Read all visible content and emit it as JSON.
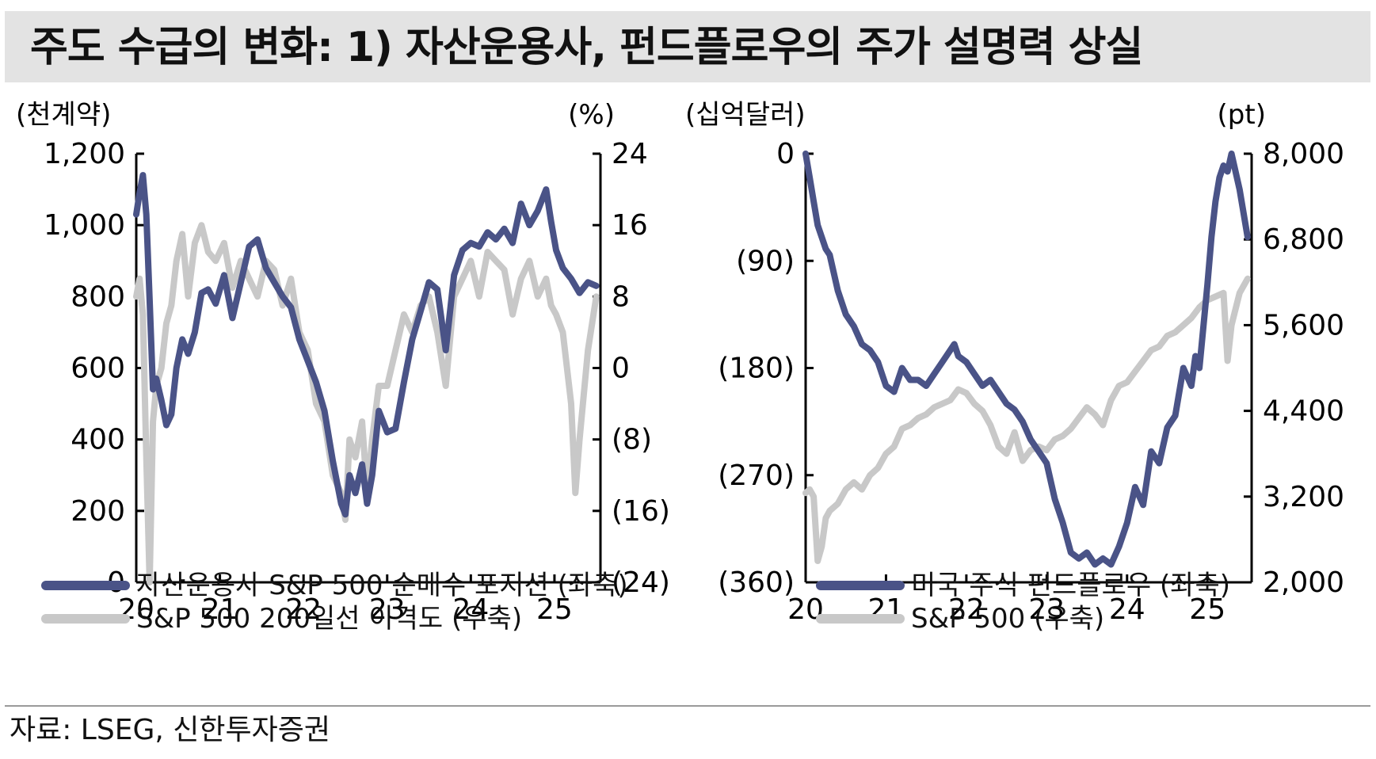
{
  "title": "주도 수급의 변화: 1) 자산운용사, 펀드플로우의 주가 설명력 상실",
  "source": "자료: LSEG, 신한투자증권",
  "colors": {
    "series_dark": "#4a5387",
    "series_light": "#c8c8c8",
    "axis": "#000000",
    "title_bg": "#e3e3e3"
  },
  "chart_data": [
    {
      "type": "line",
      "left_unit_label": "(천계약)",
      "right_unit_label": "(%)",
      "x_ticks": [
        "20",
        "21",
        "22",
        "23",
        "24",
        "25"
      ],
      "x_range": [
        2020.0,
        2025.55
      ],
      "left_axis": {
        "range": [
          0,
          1200
        ],
        "ticks": [
          0,
          200,
          400,
          600,
          800,
          1000,
          1200
        ],
        "tick_labels": [
          "0",
          "200",
          "400",
          "600",
          "800",
          "1,000",
          "1,200"
        ]
      },
      "right_axis": {
        "range": [
          -24,
          24
        ],
        "ticks": [
          -24,
          -16,
          -8,
          0,
          8,
          16,
          24
        ],
        "tick_labels": [
          "(24)",
          "(16)",
          "(8)",
          "0",
          "8",
          "16",
          "24"
        ]
      },
      "series": [
        {
          "name": "자산운용사 S&P 500 순매수 포지션 (좌축)",
          "axis": "left",
          "color": "#4a5387",
          "x": [
            2020.0,
            2020.04,
            2020.08,
            2020.12,
            2020.16,
            2020.2,
            2020.24,
            2020.3,
            2020.36,
            2020.42,
            2020.48,
            2020.55,
            2020.62,
            2020.7,
            2020.78,
            2020.86,
            2020.95,
            2021.05,
            2021.15,
            2021.25,
            2021.35,
            2021.45,
            2021.55,
            2021.65,
            2021.75,
            2021.85,
            2021.95,
            2022.05,
            2022.15,
            2022.25,
            2022.35,
            2022.45,
            2022.5,
            2022.55,
            2022.62,
            2022.7,
            2022.76,
            2022.82,
            2022.9,
            2023.0,
            2023.1,
            2023.2,
            2023.3,
            2023.4,
            2023.5,
            2023.6,
            2023.7,
            2023.8,
            2023.9,
            2024.0,
            2024.1,
            2024.2,
            2024.3,
            2024.4,
            2024.5,
            2024.6,
            2024.7,
            2024.8,
            2024.9,
            2024.96,
            2025.02,
            2025.1,
            2025.2,
            2025.3,
            2025.4,
            2025.5
          ],
          "y": [
            1030,
            1090,
            1140,
            1030,
            790,
            540,
            570,
            510,
            440,
            470,
            600,
            680,
            640,
            700,
            810,
            820,
            780,
            860,
            740,
            840,
            940,
            960,
            880,
            840,
            800,
            770,
            680,
            620,
            560,
            480,
            340,
            220,
            190,
            300,
            250,
            330,
            220,
            300,
            480,
            420,
            430,
            560,
            680,
            760,
            840,
            820,
            650,
            860,
            930,
            950,
            940,
            980,
            960,
            990,
            950,
            1060,
            1000,
            1040,
            1100,
            1010,
            930,
            880,
            850,
            810,
            840,
            830
          ]
        },
        {
          "name": "S&P 500 200일선 이격도 (우축)",
          "axis": "right",
          "color": "#c8c8c8",
          "x": [
            2020.0,
            2020.04,
            2020.08,
            2020.12,
            2020.16,
            2020.2,
            2020.24,
            2020.3,
            2020.36,
            2020.42,
            2020.48,
            2020.55,
            2020.62,
            2020.7,
            2020.78,
            2020.86,
            2020.95,
            2021.05,
            2021.15,
            2021.25,
            2021.35,
            2021.45,
            2021.55,
            2021.65,
            2021.75,
            2021.85,
            2021.95,
            2022.05,
            2022.15,
            2022.25,
            2022.35,
            2022.45,
            2022.5,
            2022.55,
            2022.62,
            2022.7,
            2022.76,
            2022.82,
            2022.9,
            2023.0,
            2023.1,
            2023.2,
            2023.3,
            2023.4,
            2023.5,
            2023.6,
            2023.7,
            2023.8,
            2023.9,
            2024.0,
            2024.1,
            2024.2,
            2024.3,
            2024.4,
            2024.5,
            2024.6,
            2024.7,
            2024.8,
            2024.9,
            2024.96,
            2025.02,
            2025.1,
            2025.2,
            2025.25,
            2025.3,
            2025.4,
            2025.5
          ],
          "y": [
            8,
            10,
            6,
            -10,
            -24,
            -6,
            -2,
            0,
            5,
            7,
            12,
            15,
            8,
            14,
            16,
            13,
            12,
            14,
            9,
            12,
            10,
            8,
            12,
            11,
            7,
            10,
            4,
            2,
            -4,
            -6,
            -12,
            -14,
            -17,
            -8,
            -10,
            -6,
            -14,
            -8,
            -2,
            -2,
            2,
            6,
            4,
            7,
            8,
            4,
            -2,
            8,
            10,
            12,
            8,
            13,
            12,
            11,
            6,
            10,
            12,
            8,
            10,
            7,
            6,
            4,
            -4,
            -14,
            -8,
            2,
            8
          ]
        }
      ]
    },
    {
      "type": "line",
      "left_unit_label": "(십억달러)",
      "right_unit_label": "(pt)",
      "x_ticks": [
        "20",
        "21",
        "22",
        "23",
        "24",
        "25"
      ],
      "x_range": [
        2020.0,
        2025.55
      ],
      "left_axis": {
        "range": [
          -360,
          0
        ],
        "ticks": [
          -360,
          -270,
          -180,
          -90,
          0
        ],
        "tick_labels": [
          "(360)",
          "(270)",
          "(180)",
          "(90)",
          "0"
        ]
      },
      "right_axis": {
        "range": [
          2000,
          8000
        ],
        "ticks": [
          2000,
          3200,
          4400,
          5600,
          6800,
          8000
        ],
        "tick_labels": [
          "2,000",
          "3,200",
          "4,400",
          "5,600",
          "6,800",
          "8,000"
        ]
      },
      "series": [
        {
          "name": "미국 주식 펀드플로우 (좌축)",
          "axis": "left",
          "color": "#4a5387",
          "x": [
            2020.0,
            2020.05,
            2020.1,
            2020.15,
            2020.2,
            2020.25,
            2020.3,
            2020.35,
            2020.4,
            2020.5,
            2020.6,
            2020.7,
            2020.8,
            2020.9,
            2021.0,
            2021.1,
            2021.2,
            2021.3,
            2021.4,
            2021.5,
            2021.6,
            2021.7,
            2021.8,
            2021.85,
            2021.9,
            2022.0,
            2022.1,
            2022.2,
            2022.3,
            2022.4,
            2022.5,
            2022.6,
            2022.7,
            2022.8,
            2022.9,
            2023.0,
            2023.1,
            2023.2,
            2023.3,
            2023.4,
            2023.5,
            2023.6,
            2023.7,
            2023.8,
            2023.9,
            2024.0,
            2024.1,
            2024.2,
            2024.3,
            2024.4,
            2024.5,
            2024.6,
            2024.7,
            2024.8,
            2024.85,
            2024.9,
            2025.0,
            2025.05,
            2025.1,
            2025.15,
            2025.2,
            2025.25,
            2025.3,
            2025.4,
            2025.5
          ],
          "y": [
            0,
            -20,
            -40,
            -60,
            -70,
            -80,
            -85,
            -100,
            -115,
            -135,
            -145,
            -160,
            -165,
            -175,
            -195,
            -200,
            -180,
            -190,
            -190,
            -195,
            -185,
            -175,
            -165,
            -160,
            -170,
            -175,
            -185,
            -195,
            -190,
            -200,
            -210,
            -215,
            -225,
            -240,
            -250,
            -260,
            -290,
            -310,
            -335,
            -340,
            -335,
            -345,
            -340,
            -345,
            -330,
            -310,
            -280,
            -295,
            -250,
            -260,
            -230,
            -220,
            -180,
            -195,
            -170,
            -180,
            -110,
            -70,
            -40,
            -20,
            -10,
            -15,
            0,
            -30,
            -70
          ]
        },
        {
          "name": "S&P 500 (우축)",
          "axis": "right",
          "color": "#c8c8c8",
          "x": [
            2020.0,
            2020.05,
            2020.1,
            2020.15,
            2020.2,
            2020.25,
            2020.3,
            2020.4,
            2020.5,
            2020.6,
            2020.7,
            2020.8,
            2020.9,
            2021.0,
            2021.1,
            2021.2,
            2021.3,
            2021.4,
            2021.5,
            2021.6,
            2021.7,
            2021.8,
            2021.9,
            2022.0,
            2022.1,
            2022.2,
            2022.3,
            2022.4,
            2022.5,
            2022.6,
            2022.7,
            2022.8,
            2022.9,
            2023.0,
            2023.1,
            2023.2,
            2023.3,
            2023.4,
            2023.5,
            2023.6,
            2023.7,
            2023.8,
            2023.9,
            2024.0,
            2024.1,
            2024.2,
            2024.3,
            2024.4,
            2024.5,
            2024.6,
            2024.7,
            2024.8,
            2024.9,
            2025.0,
            2025.1,
            2025.2,
            2025.25,
            2025.3,
            2025.4,
            2025.5
          ],
          "y": [
            3250,
            3300,
            3200,
            2300,
            2500,
            2900,
            3000,
            3100,
            3300,
            3400,
            3300,
            3500,
            3600,
            3800,
            3900,
            4150,
            4200,
            4300,
            4350,
            4450,
            4500,
            4550,
            4700,
            4650,
            4500,
            4400,
            4200,
            3900,
            3800,
            4100,
            3700,
            3850,
            3900,
            3850,
            4000,
            4050,
            4150,
            4300,
            4450,
            4350,
            4200,
            4550,
            4750,
            4800,
            4950,
            5100,
            5250,
            5300,
            5450,
            5500,
            5600,
            5700,
            5850,
            5950,
            6000,
            6050,
            5100,
            5600,
            6050,
            6250
          ]
        }
      ]
    }
  ]
}
